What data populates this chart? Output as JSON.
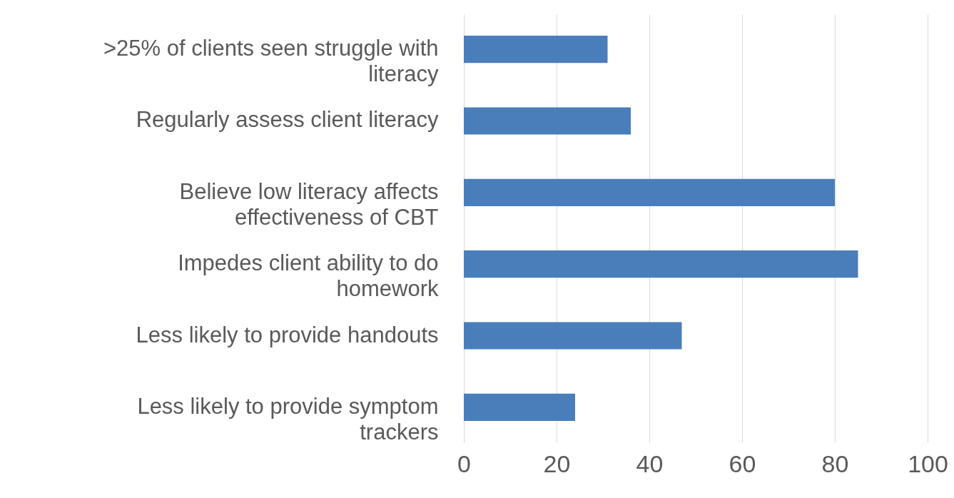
{
  "chart_data": {
    "type": "bar",
    "orientation": "horizontal",
    "categories": [
      ">25% of clients seen struggle with literacy",
      "Regularly assess client literacy",
      "Believe low literacy affects effectiveness of CBT",
      "Impedes client ability to do homework",
      "Less likely to provide handouts",
      "Less likely to provide symptom trackers"
    ],
    "values": [
      31,
      36,
      80,
      85,
      47,
      24
    ],
    "color": "#4a7ebb",
    "xlim": [
      0,
      100
    ],
    "xticks": [
      0,
      20,
      40,
      60,
      80,
      100
    ],
    "grid": "x"
  }
}
